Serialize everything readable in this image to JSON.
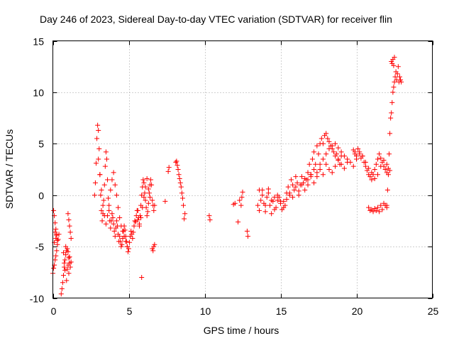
{
  "chart_data": {
    "type": "scatter",
    "title": "Day 246 of 2023, Sidereal Day-to-day VTEC variation (SDTVAR) for receiver flin",
    "xlabel": "GPS time / hours",
    "ylabel": "SDTVAR / TECUs",
    "xlim": [
      0,
      25
    ],
    "ylim": [
      -10,
      15
    ],
    "xticks": [
      0,
      5,
      10,
      15,
      20,
      25
    ],
    "yticks": [
      -10,
      -5,
      0,
      5,
      10,
      15
    ],
    "xtick_labels": [
      "0",
      "5",
      "10",
      "15",
      "20",
      "25"
    ],
    "ytick_labels": [
      "-10",
      "-5",
      "0",
      "5",
      "10",
      "15"
    ],
    "grid": true,
    "marker": "+",
    "color": "#ff0000",
    "series": [
      {
        "name": "SDTVAR",
        "x": [
          0.0,
          0.05,
          0.1,
          0.15,
          0.2,
          0.25,
          0.3,
          0.35,
          0.4,
          0.05,
          0.1,
          0.15,
          0.2,
          0.25,
          0.3,
          0.1,
          0.15,
          0.2,
          0.25,
          0.55,
          0.6,
          0.65,
          0.7,
          0.75,
          0.8,
          0.85,
          0.9,
          0.95,
          1.0,
          1.05,
          1.1,
          1.15,
          1.2,
          0.7,
          0.8,
          0.9,
          1.0,
          1.1,
          0.75,
          0.85,
          0.95,
          1.05,
          1.0,
          1.05,
          1.1,
          1.15,
          1.2,
          2.75,
          2.8,
          2.85,
          2.9,
          2.95,
          3.0,
          3.05,
          3.1,
          3.15,
          3.2,
          3.25,
          3.3,
          3.35,
          3.4,
          3.45,
          3.5,
          3.55,
          3.6,
          3.65,
          3.7,
          3.75,
          3.8,
          3.85,
          3.9,
          3.95,
          4.0,
          4.05,
          4.1,
          4.15,
          4.2,
          4.25,
          4.3,
          4.35,
          4.4,
          4.45,
          4.5,
          4.55,
          4.6,
          4.65,
          4.7,
          4.75,
          4.8,
          4.85,
          4.9,
          4.95,
          5.0,
          5.05,
          5.1,
          5.15,
          5.2,
          5.25,
          5.3,
          5.35,
          5.4,
          5.45,
          5.5,
          5.55,
          5.6,
          3.0,
          3.1,
          3.2,
          3.3,
          3.4,
          3.5,
          3.6,
          3.7,
          3.8,
          3.9,
          4.0,
          4.1,
          4.2,
          4.3,
          4.4,
          4.5,
          4.6,
          4.7,
          4.8,
          4.9,
          5.0,
          5.6,
          5.65,
          5.7,
          5.75,
          5.8,
          5.85,
          5.9,
          5.95,
          6.0,
          6.05,
          6.1,
          6.15,
          6.2,
          6.25,
          6.3,
          6.35,
          6.4,
          6.45,
          6.5,
          6.55,
          6.6,
          6.65,
          6.7,
          5.7,
          5.8,
          5.9,
          6.0,
          6.1,
          6.2,
          6.3,
          6.4,
          5.85,
          6.55,
          6.6,
          6.65,
          6.7,
          7.4,
          7.6,
          7.65,
          8.1,
          8.15,
          8.2,
          8.25,
          8.3,
          8.35,
          8.4,
          8.45,
          8.5,
          8.55,
          8.6,
          8.65,
          8.7,
          10.3,
          10.35,
          11.9,
          12.0,
          12.2,
          12.3,
          12.4,
          12.45,
          12.5,
          12.8,
          12.85,
          13.5,
          13.6,
          13.7,
          13.8,
          13.9,
          14.0,
          14.1,
          14.2,
          14.3,
          14.4,
          14.5,
          14.6,
          14.7,
          14.8,
          14.9,
          15.0,
          15.1,
          15.2,
          15.3,
          15.4,
          15.5,
          15.6,
          15.7,
          15.8,
          15.9,
          16.0,
          16.1,
          16.2,
          16.3,
          16.4,
          16.5,
          16.6,
          16.7,
          16.8,
          16.9,
          17.0,
          17.1,
          17.2,
          17.3,
          17.4,
          17.5,
          17.6,
          17.7,
          17.8,
          17.9,
          18.0,
          18.1,
          18.2,
          18.3,
          18.4,
          18.5,
          18.6,
          18.7,
          18.8,
          18.9,
          19.0,
          13.6,
          13.8,
          14.0,
          14.2,
          14.4,
          14.6,
          14.8,
          15.0,
          15.2,
          15.4,
          15.6,
          15.8,
          16.0,
          16.2,
          16.4,
          16.6,
          16.8,
          17.0,
          17.2,
          17.4,
          17.6,
          17.8,
          18.0,
          18.2,
          18.4,
          18.6,
          18.8,
          19.0,
          19.2,
          19.4,
          19.6,
          19.8,
          16.8,
          17.0,
          17.2,
          17.4,
          17.6,
          17.8,
          18.0,
          18.2,
          18.4,
          18.6,
          18.8,
          19.0,
          19.2,
          19.4,
          19.8,
          19.9,
          20.0,
          20.1,
          20.2,
          20.3,
          20.4,
          20.5,
          20.6,
          20.7,
          20.8,
          20.9,
          21.0,
          21.1,
          21.2,
          21.3,
          21.4,
          21.5,
          21.6,
          21.7,
          21.8,
          21.9,
          22.0,
          22.1,
          19.9,
          20.0,
          20.2,
          20.4,
          20.6,
          20.8,
          21.0,
          21.2,
          21.4,
          21.6,
          21.8,
          22.0,
          22.2,
          20.8,
          20.9,
          21.0,
          21.1,
          21.2,
          21.3,
          21.4,
          21.5,
          21.6,
          21.7,
          21.8,
          21.9,
          22.0,
          22.0,
          22.05,
          22.1,
          22.15,
          22.2,
          22.25,
          22.3,
          22.35,
          22.4,
          22.45,
          22.5,
          22.55,
          22.6,
          22.65,
          22.7,
          22.75,
          22.8,
          22.85,
          22.9,
          22.95,
          22.3,
          22.35,
          22.4,
          22.45,
          22.5
        ],
        "y": [
          -7.6,
          -7.1,
          -6.8,
          -6.3,
          -5.9,
          -5.4,
          -4.8,
          -4.3,
          -3.8,
          -1.5,
          -2.0,
          -2.7,
          -3.3,
          -3.8,
          -4.4,
          -4.6,
          -3.6,
          -4.2,
          -3.9,
          -9.6,
          -9.1,
          -8.5,
          -7.8,
          -7.0,
          -6.3,
          -5.8,
          -5.4,
          -5.2,
          -5.5,
          -6.1,
          -6.6,
          -7.0,
          -6.5,
          -5.6,
          -7.3,
          -8.3,
          -6.8,
          -6.0,
          -6.6,
          -5.0,
          -7.2,
          -7.6,
          -1.8,
          -2.4,
          -3.0,
          -3.6,
          -4.2,
          0.0,
          1.2,
          3.1,
          5.5,
          6.8,
          6.3,
          4.5,
          2.0,
          0.0,
          -1.5,
          -2.5,
          -1.8,
          -0.5,
          1.0,
          2.8,
          4.2,
          3.5,
          1.5,
          -0.3,
          -1.5,
          -2.5,
          -3.2,
          -2.5,
          -1.8,
          -2.2,
          -2.8,
          -3.5,
          -4.0,
          -3.2,
          -2.5,
          -3.0,
          -3.8,
          -4.5,
          -4.0,
          -4.5,
          -5.0,
          -4.8,
          -4.2,
          -3.5,
          -3.0,
          -3.4,
          -4.0,
          -4.5,
          -5.0,
          -5.5,
          -5.2,
          -4.6,
          -4.0,
          -3.5,
          -3.8,
          -4.2,
          -3.6,
          -3.0,
          -2.5,
          -2.6,
          -2.0,
          -1.5,
          -2.4,
          3.5,
          2.0,
          0.5,
          -1.0,
          -2.0,
          -2.8,
          -2.0,
          -1.0,
          0.5,
          1.5,
          2.2,
          1.0,
          0.0,
          -1.2,
          -2.2,
          -3.0,
          -3.5,
          -4.0,
          -4.5,
          -5.0,
          -5.2,
          -1.5,
          -2.2,
          -3.0,
          -2.0,
          -1.0,
          0.0,
          0.8,
          1.5,
          1.2,
          0.2,
          -0.5,
          -1.2,
          -2.0,
          -1.6,
          -0.8,
          0.2,
          1.0,
          1.5,
          1.0,
          -0.5,
          -1.0,
          -1.5,
          -1.0,
          -2.8,
          -2.2,
          -1.2,
          -0.2,
          0.8,
          1.6,
          0.6,
          -0.2,
          -8.0,
          -5.2,
          -5.4,
          -5.0,
          -4.8,
          -0.6,
          2.3,
          2.7,
          3.2,
          3.3,
          2.9,
          2.5,
          2.0,
          1.6,
          1.2,
          0.8,
          0.2,
          -0.3,
          -1.0,
          -2.3,
          -1.8,
          -2.0,
          -2.4,
          -0.9,
          -0.8,
          -2.6,
          -0.5,
          -1.0,
          -0.2,
          0.3,
          -3.5,
          -4.0,
          -1.0,
          -1.5,
          -0.5,
          0.5,
          -0.8,
          -1.6,
          -0.2,
          0.6,
          -1.0,
          -1.8,
          -0.6,
          -0.2,
          -1.2,
          -0.5,
          -0.2,
          -0.8,
          -1.4,
          -0.6,
          -1.0,
          0.2,
          0.8,
          0.0,
          1.5,
          1.0,
          0.5,
          1.8,
          1.2,
          0.0,
          1.0,
          1.8,
          1.2,
          0.5,
          1.5,
          2.2,
          3.0,
          2.0,
          3.5,
          4.2,
          3.0,
          4.8,
          4.0,
          5.0,
          5.5,
          5.0,
          5.8,
          6.0,
          5.5,
          5.2,
          4.8,
          4.5,
          4.2,
          3.8,
          4.0,
          3.5,
          3.0,
          3.8,
          0.5,
          0.0,
          -1.0,
          0.2,
          -0.5,
          -1.4,
          0.0,
          -0.6,
          -1.2,
          -0.4,
          0.2,
          -0.2,
          0.8,
          0.4,
          1.0,
          1.6,
          1.0,
          1.8,
          2.5,
          2.2,
          3.0,
          3.5,
          4.0,
          4.5,
          4.8,
          5.0,
          4.6,
          4.2,
          3.8,
          3.5,
          3.2,
          2.8,
          1.5,
          2.0,
          1.2,
          1.8,
          2.5,
          2.0,
          3.0,
          2.5,
          2.2,
          2.8,
          3.4,
          3.0,
          2.6,
          3.2,
          4.4,
          4.2,
          3.8,
          4.5,
          4.0,
          3.6,
          3.8,
          3.2,
          2.8,
          2.4,
          2.0,
          1.8,
          1.5,
          2.0,
          2.5,
          3.0,
          3.5,
          4.0,
          3.6,
          3.2,
          2.8,
          2.5,
          2.2,
          2.6,
          4.0,
          3.5,
          4.2,
          3.8,
          3.2,
          2.6,
          2.2,
          1.6,
          2.0,
          2.8,
          3.4,
          3.0,
          2.4,
          -1.2,
          -1.5,
          -1.4,
          -1.6,
          -1.3,
          -1.5,
          -1.2,
          -1.6,
          -1.0,
          -1.4,
          -0.8,
          -1.0,
          -1.2,
          -1.0,
          0.5,
          2.0,
          4.0,
          6.0,
          7.5,
          8.0,
          9.0,
          10.0,
          10.5,
          11.0,
          11.5,
          12.0,
          11.2,
          11.8,
          12.5,
          11.0,
          11.5,
          11.2,
          11.0,
          13.0,
          12.8,
          13.2,
          12.6,
          13.4
        ]
      }
    ]
  }
}
